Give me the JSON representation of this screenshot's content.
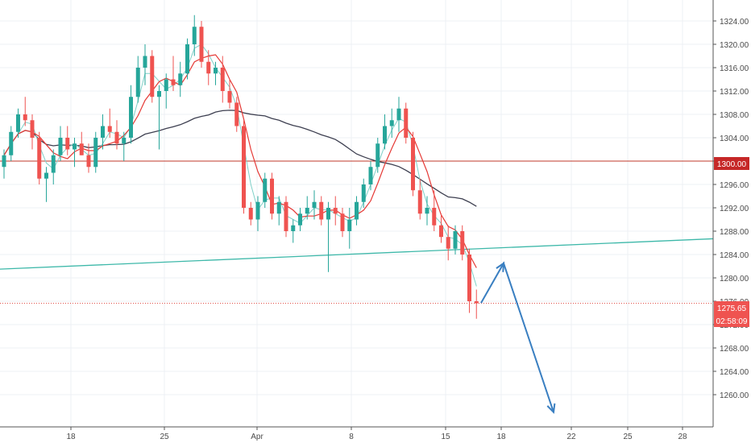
{
  "chart_data": {
    "type": "candlestick",
    "y_axis": {
      "side": "right",
      "ticks": [
        "1324.00",
        "1320.00",
        "1316.00",
        "1312.00",
        "1308.00",
        "1304.00",
        "1300.00",
        "1296.00",
        "1292.00",
        "1288.00",
        "1284.00",
        "1280.00",
        "1276.00",
        "1272.00",
        "1268.00",
        "1264.00",
        "1260.00"
      ],
      "ylim": [
        1256.5,
        1327
      ]
    },
    "x_axis": {
      "ticks": [
        "18",
        "25",
        "Apr",
        "8",
        "15",
        "18",
        "22",
        "25",
        "28"
      ]
    },
    "grid": true,
    "price_labels": {
      "resistance": "1300.00",
      "last_price": "1275.65",
      "countdown": "02:58:09"
    },
    "horizontal_lines": [
      {
        "value": 1300.0,
        "style": "solid",
        "color": "#c0392b"
      },
      {
        "value": 1275.65,
        "style": "dotted",
        "color": "#e0504a"
      }
    ],
    "trendline": {
      "from": [
        0,
        1281.5
      ],
      "to": [
        1,
        1286.7
      ],
      "color": "#3db8a9"
    },
    "forecast_path": [
      [
        1275.7,
        0
      ],
      [
        1282.5,
        1
      ],
      [
        1257.0,
        2
      ]
    ],
    "colors": {
      "up": "#26a69a",
      "down": "#ef5350",
      "ma_fast": "#e53935",
      "ma_slow": "#3d3f50",
      "ma_fast2": "#7fd0c8",
      "forecast": "#3a7fc1"
    },
    "candles": [
      [
        1299,
        1302,
        1297,
        1301
      ],
      [
        1301,
        1306,
        1300,
        1305
      ],
      [
        1305,
        1309,
        1304,
        1308
      ],
      [
        1308,
        1311,
        1306,
        1307
      ],
      [
        1307,
        1308,
        1302,
        1304
      ],
      [
        1304,
        1305,
        1296,
        1297
      ],
      [
        1297,
        1299,
        1293,
        1298
      ],
      [
        1298,
        1302,
        1296,
        1301
      ],
      [
        1301,
        1306,
        1300,
        1304
      ],
      [
        1304,
        1306,
        1301,
        1302
      ],
      [
        1302,
        1304,
        1299,
        1303
      ],
      [
        1303,
        1305,
        1301,
        1301
      ],
      [
        1301,
        1303,
        1298,
        1299
      ],
      [
        1299,
        1305,
        1298,
        1304
      ],
      [
        1304,
        1308,
        1302,
        1306
      ],
      [
        1306,
        1309,
        1304,
        1305
      ],
      [
        1305,
        1307,
        1302,
        1303
      ],
      [
        1303,
        1305,
        1300,
        1304
      ],
      [
        1304,
        1313,
        1303,
        1311
      ],
      [
        1311,
        1318,
        1310,
        1316
      ],
      [
        1316,
        1320,
        1313,
        1318
      ],
      [
        1318,
        1319,
        1310,
        1311
      ],
      [
        1311,
        1313,
        1302,
        1312
      ],
      [
        1312,
        1315,
        1309,
        1314
      ],
      [
        1314,
        1318,
        1312,
        1313
      ],
      [
        1313,
        1317,
        1311,
        1315
      ],
      [
        1315,
        1321,
        1314,
        1320
      ],
      [
        1320,
        1325,
        1318,
        1323
      ],
      [
        1323,
        1324,
        1316,
        1317
      ],
      [
        1317,
        1319,
        1313,
        1315
      ],
      [
        1315,
        1317,
        1313,
        1316
      ],
      [
        1316,
        1318,
        1310,
        1312
      ],
      [
        1312,
        1314,
        1309,
        1310
      ],
      [
        1310,
        1311,
        1305,
        1306
      ],
      [
        1306,
        1307,
        1291,
        1292
      ],
      [
        1292,
        1293,
        1289,
        1290
      ],
      [
        1290,
        1294,
        1288,
        1293
      ],
      [
        1293,
        1298,
        1292,
        1297
      ],
      [
        1297,
        1298,
        1290,
        1291
      ],
      [
        1291,
        1294,
        1289,
        1293
      ],
      [
        1293,
        1294,
        1287,
        1288
      ],
      [
        1288,
        1290,
        1286,
        1289
      ],
      [
        1289,
        1292,
        1288,
        1291
      ],
      [
        1291,
        1294,
        1290,
        1292
      ],
      [
        1292,
        1295,
        1290,
        1293
      ],
      [
        1293,
        1294,
        1289,
        1290
      ],
      [
        1290,
        1293,
        1281,
        1292
      ],
      [
        1292,
        1294,
        1289,
        1291
      ],
      [
        1291,
        1292,
        1287,
        1288
      ],
      [
        1288,
        1292,
        1285,
        1290
      ],
      [
        1290,
        1294,
        1289,
        1293
      ],
      [
        1293,
        1297,
        1292,
        1296
      ],
      [
        1296,
        1300,
        1295,
        1299
      ],
      [
        1299,
        1304,
        1298,
        1303
      ],
      [
        1303,
        1308,
        1302,
        1306
      ],
      [
        1306,
        1309,
        1304,
        1307
      ],
      [
        1307,
        1311,
        1305,
        1309
      ],
      [
        1309,
        1310,
        1303,
        1304
      ],
      [
        1304,
        1305,
        1294,
        1295
      ],
      [
        1295,
        1297,
        1290,
        1291
      ],
      [
        1291,
        1294,
        1289,
        1292
      ],
      [
        1292,
        1295,
        1288,
        1289
      ],
      [
        1289,
        1291,
        1286,
        1287
      ],
      [
        1287,
        1289,
        1283,
        1285
      ],
      [
        1285,
        1289,
        1284,
        1288
      ],
      [
        1288,
        1289,
        1283,
        1284
      ],
      [
        1284,
        1285,
        1274,
        1276
      ],
      [
        1276,
        1278,
        1273,
        1275.65
      ]
    ]
  }
}
